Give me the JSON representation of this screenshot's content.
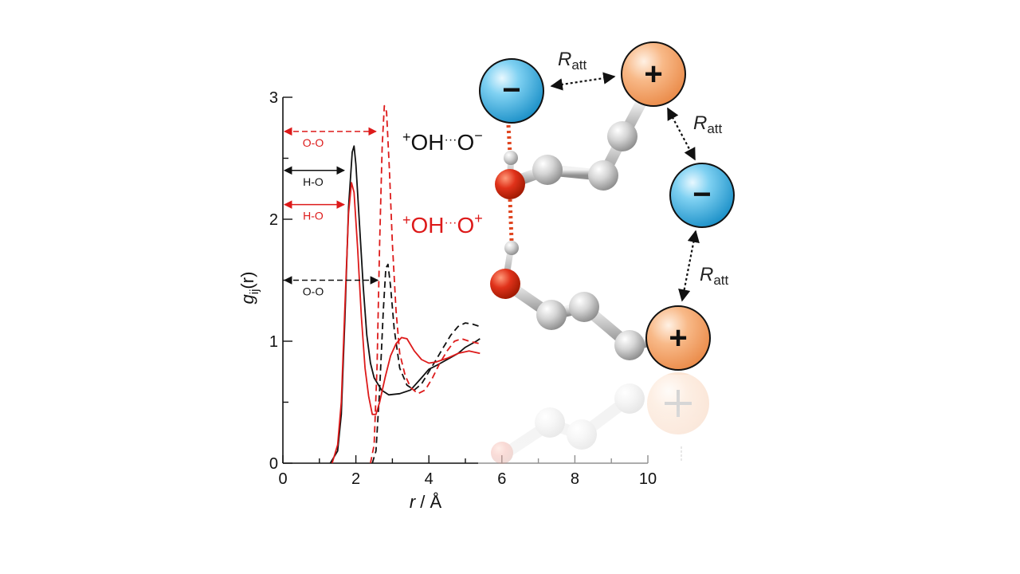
{
  "colors": {
    "black": "#111111",
    "red": "#dd1a1a",
    "anion_blue": "#2aa9e0",
    "cation_orange": "#f4a064",
    "oxygen_red": "#d42a0a",
    "carbon_grey": "#cfcfcf",
    "hbond_dots": "#e0451f"
  },
  "chart_data": {
    "type": "line",
    "xlabel": "r / Å",
    "ylabel_main": "g",
    "ylabel_sub": "ij",
    "ylabel_suffix": "(r)",
    "xlim": [
      0,
      10
    ],
    "ylim": [
      0,
      3
    ],
    "xticks": [
      0,
      2,
      4,
      6,
      8,
      10
    ],
    "yticks": [
      0,
      1,
      2,
      3
    ],
    "series": [
      {
        "name": "H-O",
        "group": "+OH···O−",
        "color": "black",
        "dash": "solid",
        "points": [
          [
            1.3,
            0
          ],
          [
            1.5,
            0.1
          ],
          [
            1.6,
            0.4
          ],
          [
            1.7,
            1.2
          ],
          [
            1.8,
            2.1
          ],
          [
            1.9,
            2.55
          ],
          [
            1.95,
            2.6
          ],
          [
            2.0,
            2.45
          ],
          [
            2.1,
            1.95
          ],
          [
            2.2,
            1.45
          ],
          [
            2.3,
            1.05
          ],
          [
            2.4,
            0.82
          ],
          [
            2.5,
            0.7
          ],
          [
            2.7,
            0.6
          ],
          [
            2.9,
            0.56
          ],
          [
            3.2,
            0.57
          ],
          [
            3.5,
            0.6
          ],
          [
            3.8,
            0.7
          ],
          [
            4.0,
            0.77
          ],
          [
            4.2,
            0.8
          ],
          [
            4.5,
            0.85
          ],
          [
            4.8,
            0.9
          ],
          [
            5.0,
            0.95
          ],
          [
            5.3,
            1.0
          ],
          [
            5.4,
            1.02
          ]
        ]
      },
      {
        "name": "O-O",
        "group": "+OH···O−",
        "color": "black",
        "dash": "dashed",
        "points": [
          [
            2.45,
            0
          ],
          [
            2.55,
            0.1
          ],
          [
            2.65,
            0.6
          ],
          [
            2.75,
            1.25
          ],
          [
            2.82,
            1.6
          ],
          [
            2.88,
            1.63
          ],
          [
            2.95,
            1.45
          ],
          [
            3.05,
            1.1
          ],
          [
            3.2,
            0.78
          ],
          [
            3.4,
            0.64
          ],
          [
            3.6,
            0.6
          ],
          [
            3.8,
            0.65
          ],
          [
            4.0,
            0.75
          ],
          [
            4.2,
            0.85
          ],
          [
            4.4,
            0.95
          ],
          [
            4.6,
            1.05
          ],
          [
            4.8,
            1.12
          ],
          [
            5.0,
            1.15
          ],
          [
            5.2,
            1.14
          ],
          [
            5.4,
            1.12
          ]
        ]
      },
      {
        "name": "H-O",
        "group": "+OH···O+",
        "color": "red",
        "dash": "solid",
        "points": [
          [
            1.35,
            0
          ],
          [
            1.5,
            0.15
          ],
          [
            1.6,
            0.5
          ],
          [
            1.7,
            1.3
          ],
          [
            1.8,
            2.05
          ],
          [
            1.88,
            2.3
          ],
          [
            1.95,
            2.22
          ],
          [
            2.05,
            1.75
          ],
          [
            2.15,
            1.2
          ],
          [
            2.25,
            0.78
          ],
          [
            2.35,
            0.55
          ],
          [
            2.45,
            0.4
          ],
          [
            2.55,
            0.4
          ],
          [
            2.65,
            0.5
          ],
          [
            2.8,
            0.7
          ],
          [
            2.95,
            0.88
          ],
          [
            3.1,
            0.98
          ],
          [
            3.25,
            1.03
          ],
          [
            3.4,
            1.02
          ],
          [
            3.6,
            0.92
          ],
          [
            3.8,
            0.85
          ],
          [
            4.0,
            0.82
          ],
          [
            4.2,
            0.83
          ],
          [
            4.5,
            0.86
          ],
          [
            4.8,
            0.9
          ],
          [
            5.1,
            0.92
          ],
          [
            5.4,
            0.9
          ]
        ]
      },
      {
        "name": "O-O",
        "group": "+OH···O+",
        "color": "red",
        "dash": "dashed",
        "points": [
          [
            2.4,
            0
          ],
          [
            2.5,
            0.15
          ],
          [
            2.58,
            0.8
          ],
          [
            2.65,
            1.8
          ],
          [
            2.72,
            2.6
          ],
          [
            2.78,
            2.93
          ],
          [
            2.84,
            2.88
          ],
          [
            2.92,
            2.4
          ],
          [
            3.0,
            1.8
          ],
          [
            3.1,
            1.25
          ],
          [
            3.2,
            0.9
          ],
          [
            3.35,
            0.72
          ],
          [
            3.5,
            0.62
          ],
          [
            3.7,
            0.57
          ],
          [
            3.9,
            0.6
          ],
          [
            4.1,
            0.7
          ],
          [
            4.3,
            0.82
          ],
          [
            4.5,
            0.92
          ],
          [
            4.7,
            1.0
          ],
          [
            4.9,
            1.02
          ],
          [
            5.1,
            1.0
          ],
          [
            5.4,
            0.98
          ]
        ]
      }
    ],
    "annotations": [
      {
        "text": "O-O",
        "color": "red",
        "dash": "dashed",
        "y": 2.72,
        "x_end": 2.55
      },
      {
        "text": "H-O",
        "color": "black",
        "dash": "solid",
        "y": 2.4,
        "x_end": 1.68
      },
      {
        "text": "H-O",
        "color": "red",
        "dash": "solid",
        "y": 2.12,
        "x_end": 1.68
      },
      {
        "text": "O-O",
        "color": "black",
        "dash": "dashed",
        "y": 1.5,
        "x_end": 2.6
      }
    ]
  },
  "labels": {
    "black_group": {
      "prefix": "+",
      "main": "OH",
      "dots": "···",
      "end": "O",
      "sup": "−"
    },
    "red_group": {
      "prefix": "+",
      "main": "OH",
      "dots": "···",
      "end": "O",
      "sup": "+"
    },
    "ratt": {
      "main": "R",
      "sub": "att"
    },
    "anion_symbol": "−",
    "cation_symbol": "+"
  }
}
